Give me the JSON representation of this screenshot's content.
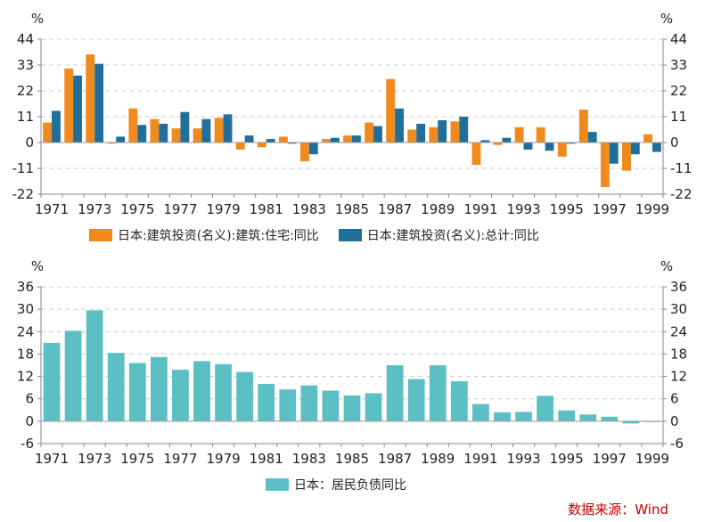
{
  "chart_data": [
    {
      "type": "bar",
      "unit_left": "%",
      "unit_right": "%",
      "x": [
        1971,
        1972,
        1973,
        1974,
        1975,
        1976,
        1977,
        1978,
        1979,
        1980,
        1981,
        1982,
        1983,
        1984,
        1985,
        1986,
        1987,
        1988,
        1989,
        1990,
        1991,
        1992,
        1993,
        1994,
        1995,
        1996,
        1997,
        1998,
        1999
      ],
      "xticks": [
        "1971",
        "1973",
        "1975",
        "1977",
        "1979",
        "1981",
        "1983",
        "1985",
        "1987",
        "1989",
        "1991",
        "1993",
        "1995",
        "1997",
        "1999"
      ],
      "ylim": [
        -22,
        44
      ],
      "yticks": [
        "44",
        "33",
        "22",
        "11",
        "0",
        "-11",
        "-22"
      ],
      "series": [
        {
          "name": "日本:建筑投资(名义):建筑:住宅:同比",
          "color": "#f08a1c",
          "values": [
            8.5,
            31.5,
            37.5,
            -0.5,
            14.5,
            10,
            6,
            6,
            10.5,
            -3,
            -2,
            2.5,
            -8,
            1.5,
            3,
            8.5,
            27,
            5.5,
            6.5,
            9,
            -9.5,
            -1,
            6.5,
            6.5,
            -6,
            14,
            -19,
            -12,
            3.5
          ]
        },
        {
          "name": "日本:建筑投资(名义):总计:同比",
          "color": "#1f6f9a",
          "values": [
            13.5,
            28.5,
            33.5,
            2.5,
            7.5,
            8,
            13,
            10,
            12,
            3,
            1.5,
            -0.5,
            -5,
            2,
            3,
            7,
            14.5,
            8,
            9.5,
            11,
            1,
            2,
            -3,
            -3.5,
            -0.5,
            4.5,
            -9,
            -5,
            -4
          ]
        }
      ]
    },
    {
      "type": "bar",
      "unit_left": "%",
      "unit_right": "%",
      "x": [
        1971,
        1972,
        1973,
        1974,
        1975,
        1976,
        1977,
        1978,
        1979,
        1980,
        1981,
        1982,
        1983,
        1984,
        1985,
        1986,
        1987,
        1988,
        1989,
        1990,
        1991,
        1992,
        1993,
        1994,
        1995,
        1996,
        1997,
        1998,
        1999
      ],
      "xticks": [
        "1971",
        "1973",
        "1975",
        "1977",
        "1979",
        "1981",
        "1983",
        "1985",
        "1987",
        "1989",
        "1991",
        "1993",
        "1995",
        "1997",
        "1999"
      ],
      "ylim": [
        -6,
        36
      ],
      "yticks": [
        "36",
        "30",
        "24",
        "18",
        "12",
        "6",
        "0",
        "-6"
      ],
      "series": [
        {
          "name": "日本：居民负债同比",
          "color": "#5bbfc4",
          "values": [
            21,
            24.2,
            29.7,
            18.3,
            15.6,
            17.2,
            13.8,
            16.1,
            15.3,
            13.2,
            10,
            8.5,
            9.6,
            8.2,
            6.9,
            7.5,
            15,
            11.3,
            15,
            10.7,
            4.6,
            2.4,
            2.5,
            6.8,
            2.9,
            1.8,
            1.2,
            -0.6,
            -0.2
          ]
        }
      ]
    }
  ],
  "footer": {
    "source": "数据来源：Wind"
  }
}
